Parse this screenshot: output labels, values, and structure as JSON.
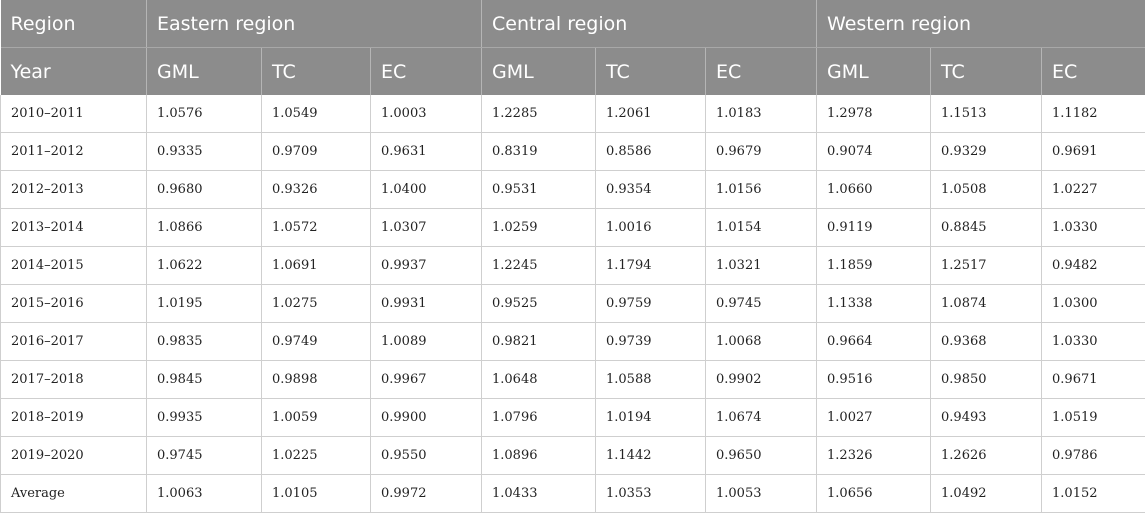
{
  "header": {
    "region_label": "Region",
    "regions": [
      "Eastern region",
      "Central region",
      "Western region"
    ],
    "year_label": "Year",
    "metrics": [
      "GML",
      "TC",
      "EC"
    ]
  },
  "rows": [
    {
      "year": "2010–2011",
      "values": [
        "1.0576",
        "1.0549",
        "1.0003",
        "1.2285",
        "1.2061",
        "1.0183",
        "1.2978",
        "1.1513",
        "1.1182"
      ]
    },
    {
      "year": "2011–2012",
      "values": [
        "0.9335",
        "0.9709",
        "0.9631",
        "0.8319",
        "0.8586",
        "0.9679",
        "0.9074",
        "0.9329",
        "0.9691"
      ]
    },
    {
      "year": "2012–2013",
      "values": [
        "0.9680",
        "0.9326",
        "1.0400",
        "0.9531",
        "0.9354",
        "1.0156",
        "1.0660",
        "1.0508",
        "1.0227"
      ]
    },
    {
      "year": "2013–2014",
      "values": [
        "1.0866",
        "1.0572",
        "1.0307",
        "1.0259",
        "1.0016",
        "1.0154",
        "0.9119",
        "0.8845",
        "1.0330"
      ]
    },
    {
      "year": "2014–2015",
      "values": [
        "1.0622",
        "1.0691",
        "0.9937",
        "1.2245",
        "1.1794",
        "1.0321",
        "1.1859",
        "1.2517",
        "0.9482"
      ]
    },
    {
      "year": "2015–2016",
      "values": [
        "1.0195",
        "1.0275",
        "0.9931",
        "0.9525",
        "0.9759",
        "0.9745",
        "1.1338",
        "1.0874",
        "1.0300"
      ]
    },
    {
      "year": "2016–2017",
      "values": [
        "0.9835",
        "0.9749",
        "1.0089",
        "0.9821",
        "0.9739",
        "1.0068",
        "0.9664",
        "0.9368",
        "1.0330"
      ]
    },
    {
      "year": "2017–2018",
      "values": [
        "0.9845",
        "0.9898",
        "0.9967",
        "1.0648",
        "1.0588",
        "0.9902",
        "0.9516",
        "0.9850",
        "0.9671"
      ]
    },
    {
      "year": "2018–2019",
      "values": [
        "0.9935",
        "1.0059",
        "0.9900",
        "1.0796",
        "1.0194",
        "1.0674",
        "1.0027",
        "0.9493",
        "1.0519"
      ]
    },
    {
      "year": "2019–2020",
      "values": [
        "0.9745",
        "1.0225",
        "0.9550",
        "1.0896",
        "1.1442",
        "0.9650",
        "1.2326",
        "1.2626",
        "0.9786"
      ]
    },
    {
      "year": "Average",
      "values": [
        "1.0063",
        "1.0105",
        "0.9972",
        "1.0433",
        "1.0353",
        "1.0053",
        "1.0656",
        "1.0492",
        "1.0152"
      ]
    }
  ]
}
